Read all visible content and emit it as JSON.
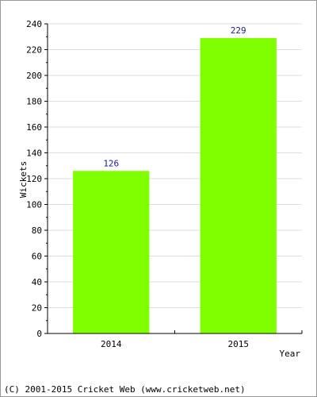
{
  "chart_data": {
    "type": "bar",
    "categories": [
      "2014",
      "2015"
    ],
    "values": [
      126,
      229
    ],
    "xlabel": "Year",
    "ylabel": "Wickets",
    "ylim": [
      0,
      240
    ],
    "yticks": [
      0,
      20,
      40,
      60,
      80,
      100,
      120,
      140,
      160,
      180,
      200,
      220,
      240
    ],
    "grid": true,
    "bar_color": "#80ff00",
    "value_label_color": "#1a1a8c"
  },
  "footer": {
    "copyright": "(C) 2001-2015 Cricket Web (www.cricketweb.net)"
  }
}
